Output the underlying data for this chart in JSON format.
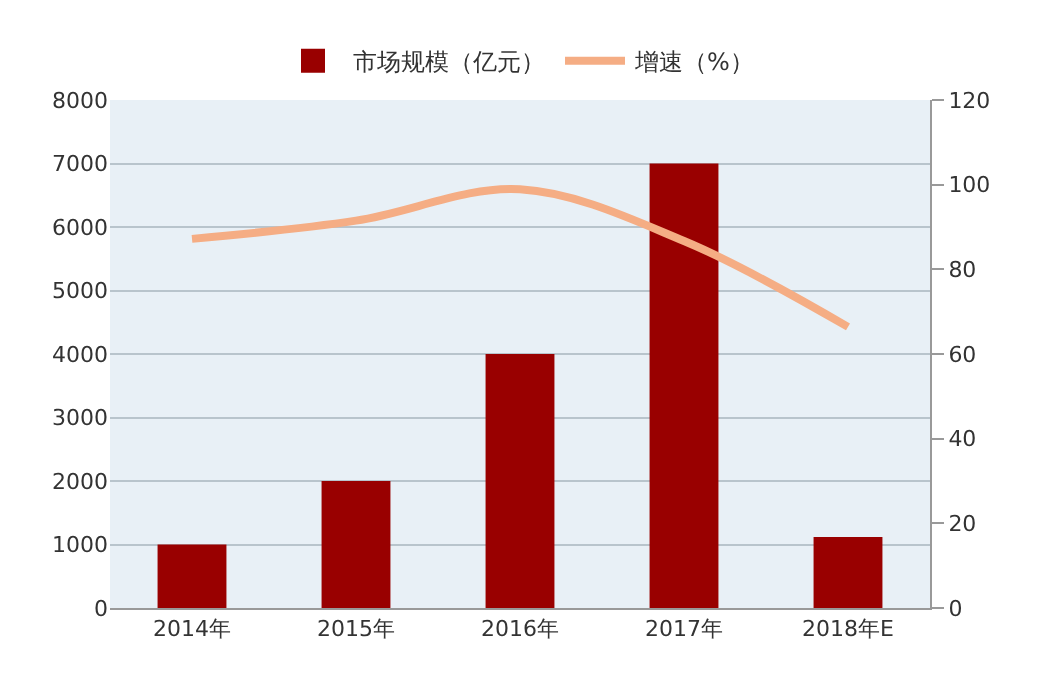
{
  "chart_data": {
    "type": "bar",
    "categories": [
      "2014年",
      "2015年",
      "2016年",
      "2017年",
      "2018年E"
    ],
    "series": [
      {
        "name": "市场规模（亿元）",
        "color": "#990000",
        "values": [
          1000,
          2000,
          4000,
          7000,
          1120
        ]
      },
      {
        "name": "增速（%）",
        "type": "line",
        "axis": "y2",
        "color": "#f5ad84",
        "values": [
          87.2,
          91.5,
          98.9,
          86.7,
          66.4
        ]
      }
    ],
    "ylim": [
      0,
      8000
    ],
    "yticks": [
      0,
      1000,
      2000,
      3000,
      4000,
      5000,
      6000,
      7000,
      8000
    ],
    "y2lim": [
      0,
      120
    ],
    "y2ticks": [
      0,
      20,
      40,
      60,
      80,
      100,
      120
    ],
    "grid": "y",
    "legend": "top",
    "marker": "none",
    "line_style": "solid"
  }
}
